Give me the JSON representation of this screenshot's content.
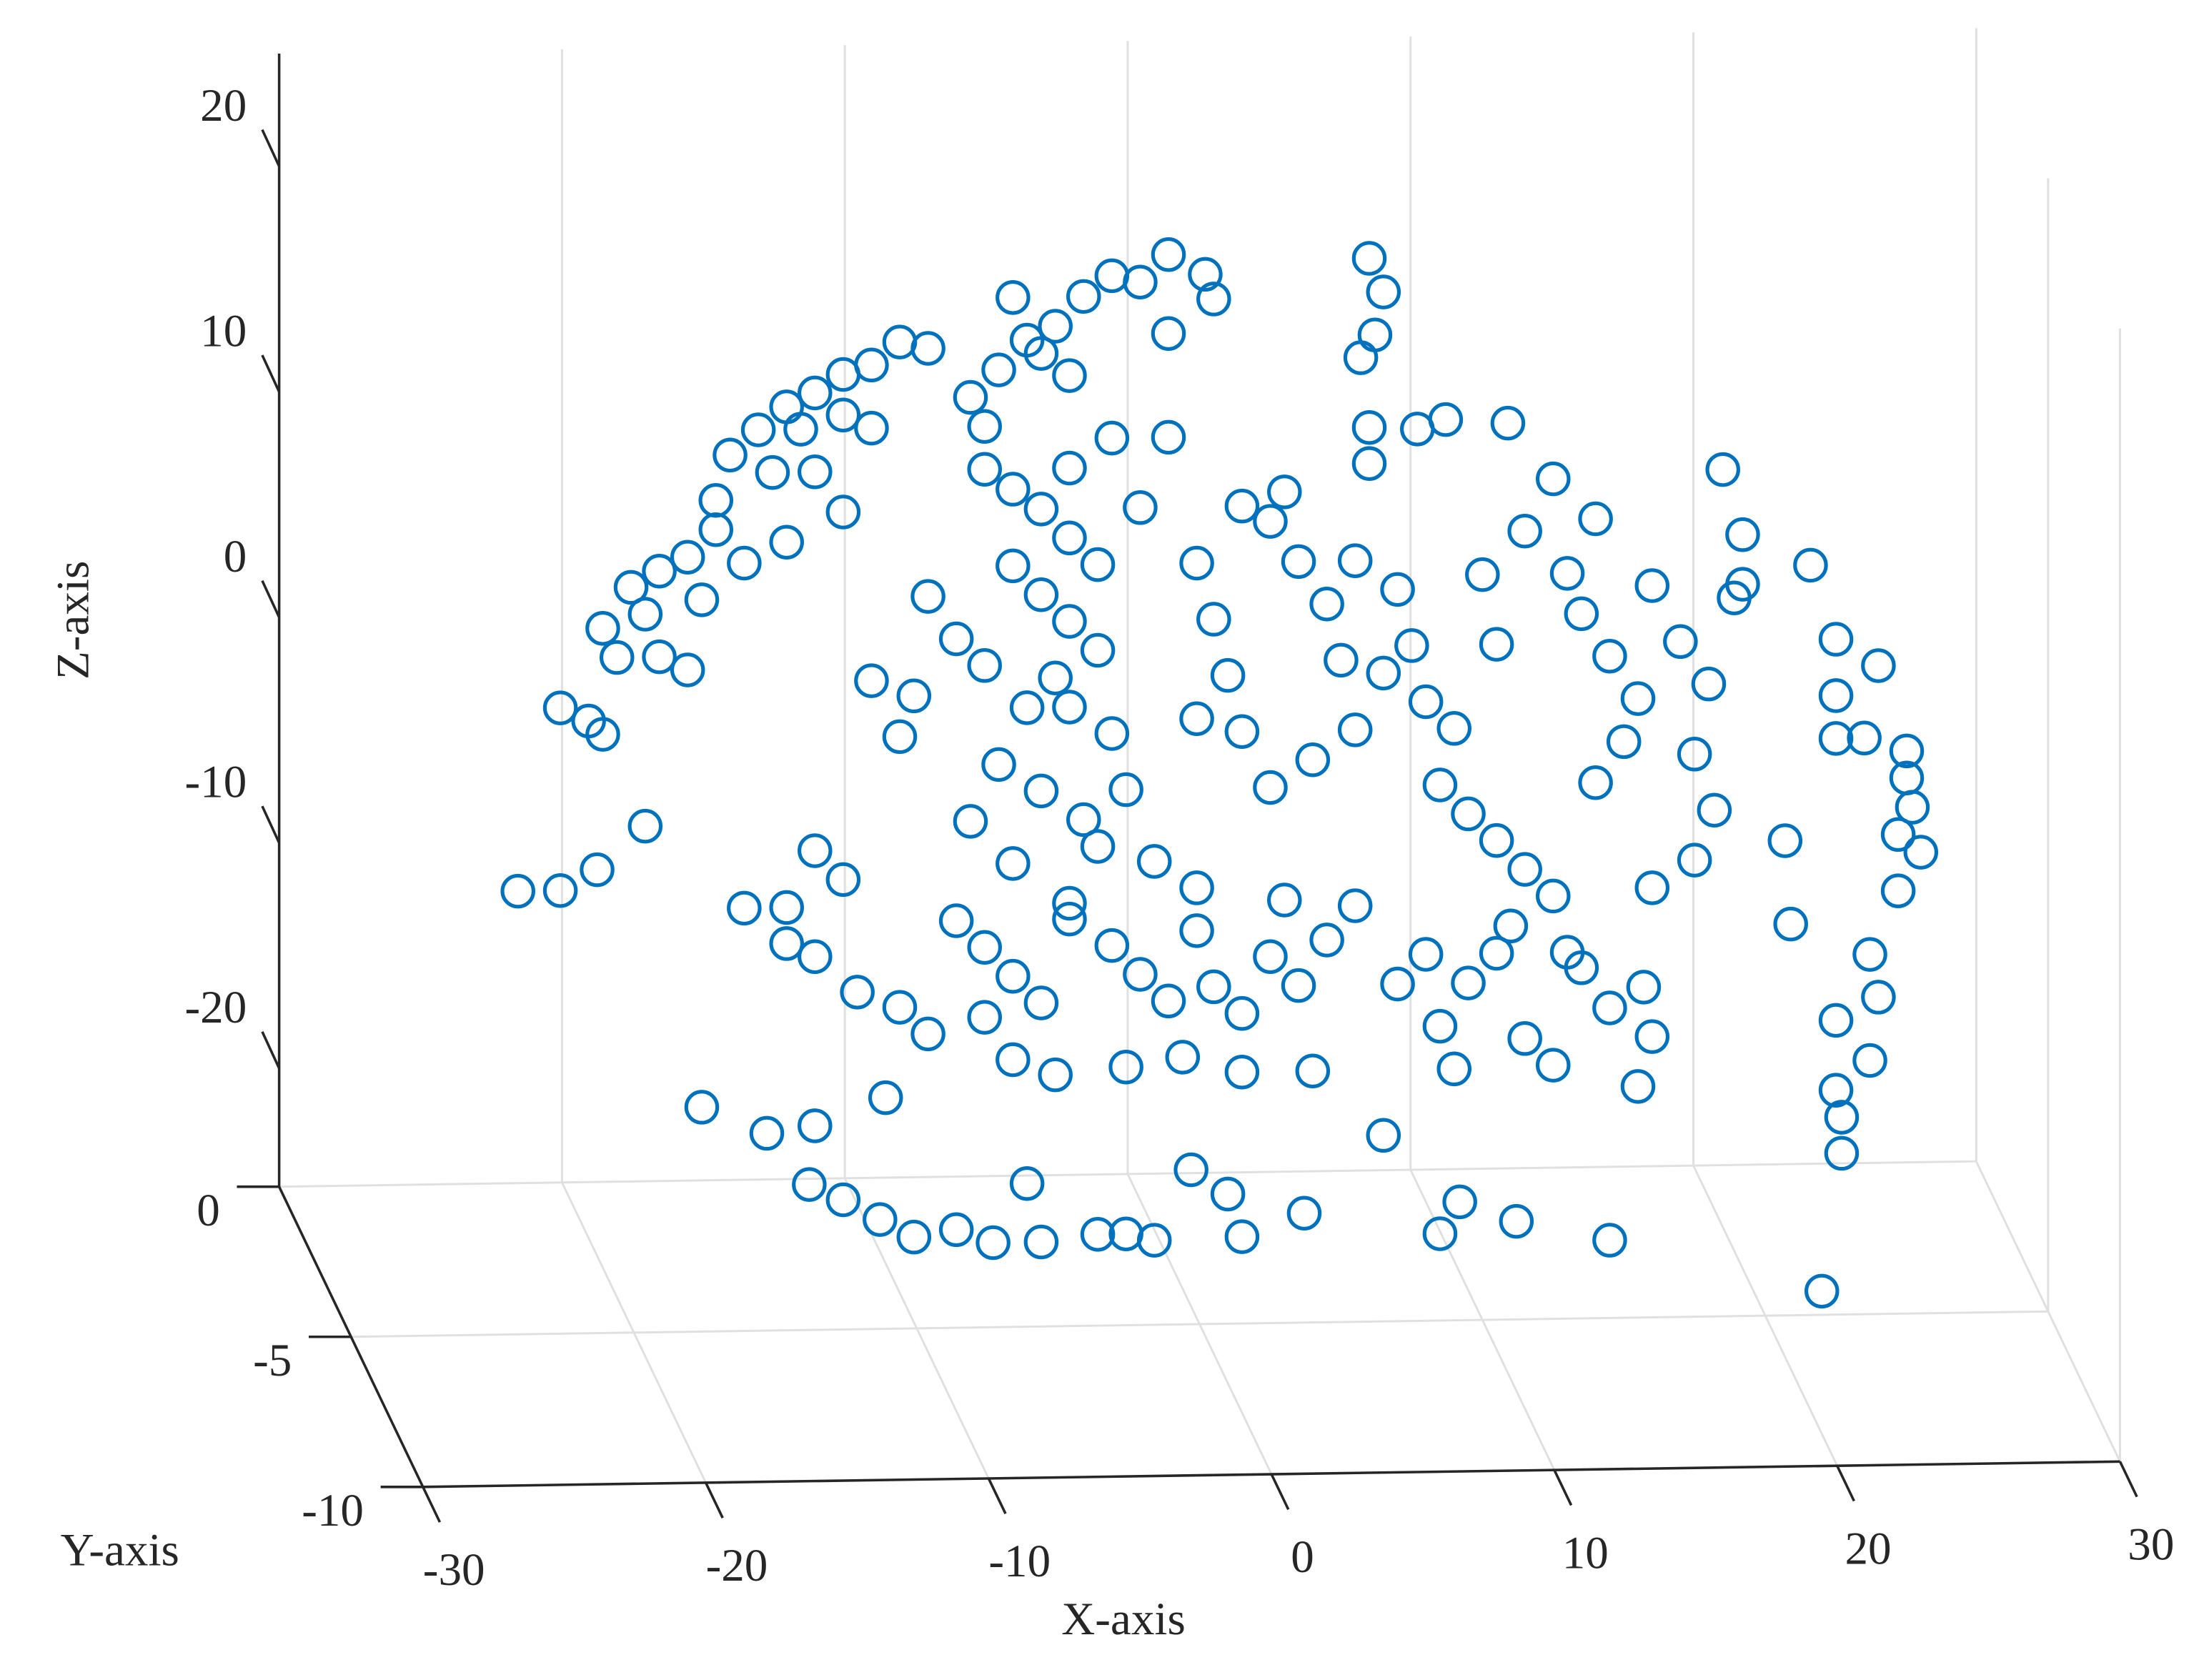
{
  "chart_data": {
    "type": "scatter",
    "xlabel": "X-axis",
    "ylabel": "Y-axis",
    "zlabel": "Z-axis",
    "xlim": [
      -30,
      30
    ],
    "ylim": [
      -10,
      0
    ],
    "zlim": [
      -27.75,
      22.5
    ],
    "xticks": [
      -30,
      -20,
      -10,
      0,
      10,
      20,
      30
    ],
    "yticks": [
      -10,
      -5,
      0
    ],
    "zticks": [
      -20,
      -10,
      0,
      10,
      20
    ],
    "grid": true,
    "color": "#0072BD",
    "x": [
      -16.6,
      -15.6,
      -14.6,
      -13.6,
      -12.6,
      -11.6,
      -10.6,
      -9.6,
      -12.6,
      -14.1,
      -15.1,
      -11.6,
      -13.6,
      -17.1,
      -18.1,
      -19.1,
      -20.1,
      -21.1,
      -20.6,
      -19.1,
      -18.1,
      -19.6,
      -17.6,
      -16.1,
      -14.6,
      -12.6,
      -17.1,
      -22.6,
      -21.6,
      -21.1,
      -19.6,
      -24.1,
      -22.6,
      -21.3,
      -8.1,
      -7.1,
      -6.1,
      -5.1,
      -4.1,
      -3.1,
      -2.1,
      -1.1,
      0.2,
      0.5,
      -1.1,
      -4.6,
      -5.6,
      -7.6,
      -6.6,
      6.0,
      6.5,
      6.2,
      5.7,
      6.0,
      7.7,
      8.7,
      10.9,
      6.0,
      18.5,
      19.2,
      21.6,
      19.2,
      18.9,
      14.0,
      12.5,
      -7.6,
      -6.6,
      -5.6,
      -4.6,
      -3.6,
      -6.6,
      -5.6,
      -4.6,
      -3.6,
      -5.1,
      -6.1,
      -4.6,
      -3.1,
      -7.1,
      -5.6,
      -4.1,
      -2.6,
      -8.6,
      -9.6,
      -7.6,
      -10.1,
      -11.6,
      -10.6,
      -8.1,
      -6.6,
      -2.1,
      -1.1,
      -3.1,
      -4.6,
      -0.1,
      0.5,
      1.0,
      -0.1,
      1.5,
      2.5,
      4.0,
      5.5,
      5.0,
      4.5,
      3.5,
      2.5,
      1.5,
      3.0,
      5.5,
      7.0,
      7.5,
      6.5,
      8.0,
      9.0,
      8.5,
      9.5,
      10.5,
      10.0,
      11.5,
      13.0,
      13.5,
      14.5,
      15.5,
      15.0,
      14.0,
      16.0,
      17.0,
      18.0,
      17.5,
      18.2,
      10.5,
      11.5,
      12.5,
      11.0,
      13.5,
      14.5,
      15.7,
      16.0,
      16.0,
      17.5,
      13.0,
      22.5,
      24.0,
      22.5,
      23.5,
      25.0,
      25.0,
      25.2,
      24.7,
      25.5,
      24.7,
      23.7,
      24.0,
      22.5,
      23.7,
      22.5,
      22.7,
      22.7,
      22.0,
      20.7,
      20.9,
      22.5,
      -13.6,
      -12.6,
      -14.6,
      -16.1,
      -14.6,
      -13.6,
      -12.1,
      -10.6,
      -9.6,
      -8.6,
      -7.6,
      -6.6,
      -5.6,
      -4.6,
      -3.1,
      -2.1,
      -1.1,
      -0.1,
      0.5,
      1.5,
      2.5,
      3.5,
      4.5,
      5.5,
      3.0,
      -0.1,
      -1.6,
      -3.6,
      -4.6,
      -7.6,
      -6.6,
      -5.1,
      -2.6,
      -0.6,
      1.5,
      4.0,
      7.0,
      8.0,
      9.5,
      10.5,
      8.5,
      9.0,
      11.5,
      12.5,
      -17.6,
      -15.3,
      -13.6,
      -11.1,
      -13.8,
      -12.6,
      -11.3,
      -10.1,
      -8.6,
      -7.3,
      -6.1,
      -5.6,
      -3.6,
      -2.6,
      -1.6,
      -0.3,
      1.0,
      1.5,
      3.7,
      6.5,
      8.5,
      9.2,
      11.2,
      14.5,
      15.5
    ],
    "y": [
      -5,
      -5,
      -5,
      -5,
      -5,
      -5,
      -5,
      -5,
      -5,
      -5,
      -5,
      -5,
      -5,
      -5,
      -5,
      -5,
      -5,
      -5,
      -5,
      -5,
      -5,
      -5,
      -5,
      -5,
      -5,
      -5,
      -5,
      -5,
      -5,
      -5,
      -5,
      -5,
      -5,
      -5,
      -5,
      -5,
      -5,
      -5,
      -5,
      -5,
      -5,
      -5,
      -5,
      -5,
      -5,
      -5,
      -5,
      -5,
      -5,
      -5,
      -5,
      -5,
      -5,
      -5,
      -5,
      -5,
      -5,
      -5,
      -5,
      -5,
      -5,
      -5,
      -5,
      -5,
      -5,
      -5,
      -5,
      -5,
      -5,
      -5,
      -5,
      -5,
      -5,
      -5,
      -5,
      -5,
      -5,
      -5,
      -5,
      -5,
      -5,
      -5,
      -5,
      -5,
      -5,
      -5,
      -5,
      -5,
      -5,
      -5,
      -5,
      -5,
      -5,
      -5,
      -5,
      -5,
      -5,
      -5,
      -5,
      -5,
      -5,
      -5,
      -5,
      -5,
      -5,
      -5,
      -5,
      -5,
      -5,
      -5,
      -5,
      -5,
      -5,
      -5,
      -5,
      -5,
      -5,
      -5,
      -5,
      -5,
      -5,
      -5,
      -5,
      -5,
      -5,
      -5,
      -5,
      -5,
      -5,
      -5,
      -5,
      -5,
      -5,
      -5,
      -5,
      -5,
      -5,
      -5,
      -5,
      -5,
      -5,
      -5,
      -5,
      -5,
      -5,
      -5,
      -5,
      -5,
      -5,
      -5,
      -5,
      -5,
      -5,
      -5,
      -5,
      -5,
      -5,
      -5,
      -5,
      -5,
      -5,
      -5,
      -5,
      -5,
      -5,
      -5,
      -5,
      -5,
      -5,
      -5,
      -5,
      -5,
      -5,
      -5,
      -5,
      -5,
      -5,
      -5,
      -5,
      -5,
      -5,
      -5,
      -5,
      -5,
      -5,
      -5,
      -5,
      -5,
      -5,
      -5,
      -5,
      -5,
      -5,
      -5,
      -5,
      -5,
      -5,
      -5,
      -5,
      -5,
      -5,
      -5,
      -5,
      -5,
      -5,
      -5,
      -5,
      -5,
      -5,
      -5,
      -5,
      -5,
      -5,
      -5,
      -5,
      -5,
      -5,
      -5,
      -5,
      -5,
      -5,
      -5,
      -5,
      -5,
      -5,
      -5,
      -5,
      -5,
      -5,
      -5,
      -5
    ],
    "z": [
      11.1,
      12.2,
      13.2,
      13.8,
      14.6,
      15.0,
      16.0,
      15.7,
      12.8,
      12.2,
      10.3,
      12.2,
      10.3,
      9.1,
      6.6,
      6.0,
      5.3,
      3.5,
      2.2,
      2.2,
      1.6,
      4.1,
      4.7,
      6.3,
      7.2,
      8.5,
      7.8,
      0.0,
      -0.6,
      -1.2,
      -5.3,
      -8.1,
      -8.1,
      -7.2,
      13.5,
      14.7,
      16.0,
      16.6,
      17.9,
      18.8,
      18.5,
      19.7,
      18.8,
      17.7,
      16.2,
      14.4,
      15.4,
      12.2,
      17.9,
      19.4,
      17.9,
      16.0,
      15.0,
      11.9,
      11.8,
      12.2,
      12.0,
      10.3,
      9.8,
      6.9,
      5.5,
      4.7,
      4.1,
      7.7,
      9.5,
      10.3,
      9.4,
      8.5,
      7.2,
      6.0,
      6.0,
      4.7,
      3.5,
      2.2,
      1.0,
      -0.3,
      -0.3,
      -1.5,
      -2.8,
      -4.0,
      -5.3,
      -4.0,
      2.8,
      4.7,
      1.6,
      0.3,
      1.0,
      -1.5,
      -5.3,
      -7.2,
      8.5,
      11.6,
      11.6,
      10.3,
      6.0,
      3.5,
      1.0,
      -0.9,
      -1.5,
      -4.0,
      -2.8,
      -1.5,
      1.6,
      4.1,
      6.0,
      7.8,
      8.5,
      9.1,
      6.0,
      4.7,
      2.2,
      1.0,
      -0.3,
      -1.5,
      -4.0,
      -5.3,
      2.2,
      5.3,
      7.2,
      5.3,
      3.5,
      1.6,
      -0.3,
      -2.2,
      -4.0,
      4.7,
      2.2,
      0.3,
      -2.8,
      -5.3,
      -6.5,
      -7.8,
      -9.0,
      -10.3,
      -12.2,
      -14.0,
      -13.1,
      -15.3,
      -8.7,
      -7.5,
      -11.5,
      2.2,
      1.0,
      -0.3,
      -2.2,
      -2.8,
      -4.0,
      -5.3,
      -6.5,
      -7.3,
      -9.0,
      -11.8,
      -13.7,
      -14.7,
      -16.5,
      -17.8,
      -19.0,
      -20.6,
      -26.7,
      -6.7,
      -10.4,
      -2.2,
      -6.5,
      -7.8,
      -9.0,
      -9.0,
      -10.6,
      -11.2,
      -12.8,
      -13.5,
      -14.7,
      -9.7,
      -10.9,
      -12.2,
      -13.4,
      -9.7,
      -10.9,
      -12.2,
      -13.4,
      -10.3,
      -12.8,
      -14.0,
      -11.5,
      -12.8,
      -10.8,
      -9.3,
      -9.0,
      -8.4,
      -7.2,
      -6.5,
      -9.0,
      -14.0,
      -15.9,
      -16.6,
      -16.3,
      -15.9,
      -16.6,
      -16.6,
      -12.8,
      -11.5,
      -12.8,
      -11.5,
      -14.7,
      -16.6,
      -15.3,
      -16.5,
      -17.8,
      -19.0,
      -18.7,
      -17.5,
      -21.3,
      -22.0,
      -22.9,
      -23.7,
      -23.4,
      -24.0,
      -21.4,
      -24.0,
      -23.7,
      -23.7,
      -24.0,
      -20.9,
      -22.0,
      -23.9,
      -22.9,
      -19.5,
      -23.9,
      -22.5,
      -23.4,
      -24.3,
      -17.5
    ]
  }
}
